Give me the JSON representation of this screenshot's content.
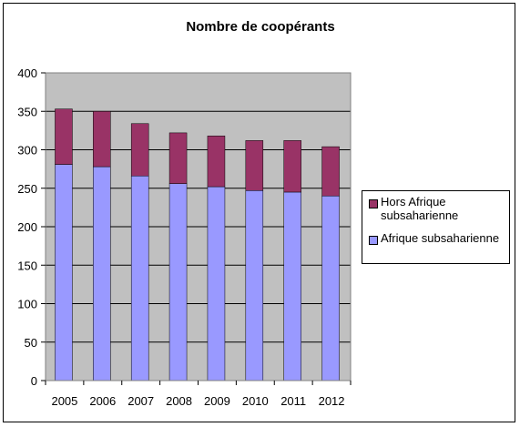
{
  "chart_data": {
    "type": "bar",
    "stacked": true,
    "title": "Nombre de coopérants",
    "xlabel": "",
    "ylabel": "",
    "categories": [
      "2005",
      "2006",
      "2007",
      "2008",
      "2009",
      "2010",
      "2011",
      "2012"
    ],
    "series": [
      {
        "name": "Afrique subsaharienne",
        "color": "#9999ff",
        "values": [
          281,
          278,
          266,
          256,
          252,
          247,
          245,
          240
        ]
      },
      {
        "name": "Hors Afrique subsaharienne",
        "color": "#993366",
        "values": [
          72,
          72,
          68,
          66,
          66,
          65,
          67,
          64
        ]
      }
    ],
    "ylim": [
      0,
      400
    ],
    "yticks": [
      0,
      50,
      100,
      150,
      200,
      250,
      300,
      350,
      400
    ],
    "grid": true,
    "plot_background": "#c0c0c0",
    "legend_position": "right",
    "legend": [
      {
        "label": "Hors Afrique subsaharienne",
        "color": "#993366"
      },
      {
        "label": "Afrique subsaharienne",
        "color": "#9999ff"
      }
    ]
  }
}
